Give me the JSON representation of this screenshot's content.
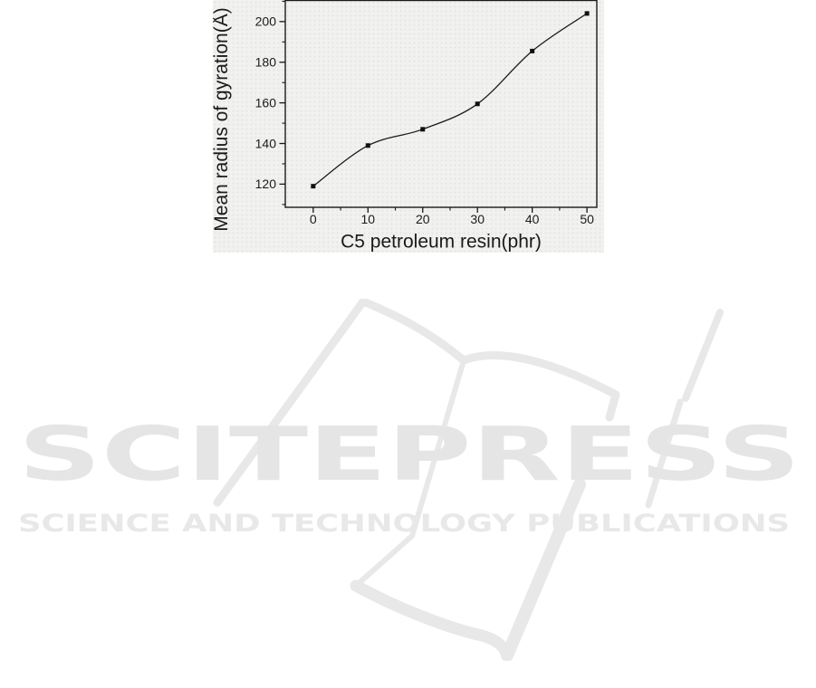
{
  "page": {
    "background": "#ffffff"
  },
  "chart_data": {
    "type": "line",
    "x": [
      0,
      10,
      20,
      30,
      40,
      50
    ],
    "y": [
      119,
      139,
      147,
      159.5,
      185.5,
      204
    ],
    "title": "",
    "xlabel": "C5 petroleum resin(phr)",
    "ylabel": "Mean radius of gyration(Å)",
    "xlim": [
      -5.1,
      51.8
    ],
    "ylim": [
      108.6,
      210.4
    ],
    "x_major_ticks": [
      0,
      10,
      20,
      30,
      40,
      50
    ],
    "x_minor_ticks": [
      5,
      15,
      25,
      35,
      45
    ],
    "y_major_ticks": [
      120,
      140,
      160,
      180,
      200
    ],
    "y_minor_ticks": [
      110,
      130,
      150,
      170,
      190,
      210
    ],
    "grid": false,
    "legend": "none",
    "curve": "smooth",
    "marker": "filled-square",
    "marker_size": 5,
    "line_color": "#1a1a1a",
    "marker_color": "#111111",
    "axis_color": "#1a1a1a",
    "text_color": "#1a1a1a",
    "plot_bg": "#f1f1ef"
  },
  "watermark": {
    "brand": "SCITEPRESS",
    "tagline": "SCIENCE AND TECHNOLOGY PUBLICATIONS",
    "color": "#e6e6e6"
  }
}
